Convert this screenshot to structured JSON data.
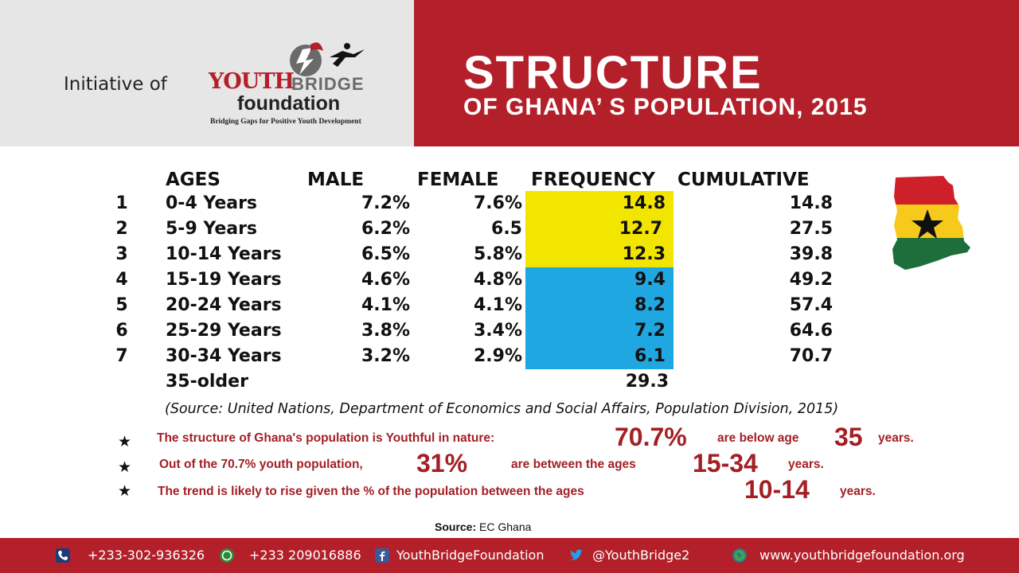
{
  "header": {
    "initiative": "Initiative of",
    "logo_youth": "YOUTH",
    "logo_bridge": "BRIDGE",
    "logo_foundation": "foundation",
    "logo_tagline": "Bridging Gaps for Positive Youth Development",
    "title": "STRUCTURE",
    "subtitle": "OF GHANA’ S POPULATION, 2015"
  },
  "table": {
    "headers": {
      "ages": "AGES",
      "male": "MALE",
      "female": "FEMALE",
      "frequency": "FREQUENCY",
      "cumulative": "CUMULATIVE"
    },
    "rows": [
      {
        "num": "1",
        "age": "0-4 Years",
        "male": "7.2%",
        "female": "7.6%",
        "frequency": "14.8",
        "cumulative": "14.8"
      },
      {
        "num": "2",
        "age": "5-9 Years",
        "male": "6.2%",
        "female": "6.5",
        "frequency": "12.7",
        "cumulative": "27.5"
      },
      {
        "num": "3",
        "age": "10-14 Years",
        "male": "6.5%",
        "female": "5.8%",
        "frequency": "12.3",
        "cumulative": "39.8"
      },
      {
        "num": "4",
        "age": "15-19 Years",
        "male": "4.6%",
        "female": "4.8%",
        "frequency": "9.4",
        "cumulative": "49.2"
      },
      {
        "num": "5",
        "age": "20-24 Years",
        "male": "4.1%",
        "female": "4.1%",
        "frequency": "8.2",
        "cumulative": "57.4"
      },
      {
        "num": "6",
        "age": "25-29 Years",
        "male": "3.8%",
        "female": "3.4%",
        "frequency": "7.2",
        "cumulative": "64.6"
      },
      {
        "num": "7",
        "age": "30-34 Years",
        "male": "3.2%",
        "female": "2.9%",
        "frequency": "6.1",
        "cumulative": "70.7"
      }
    ],
    "last_row": {
      "age": "35-older",
      "frequency": "29.3"
    },
    "highlight_colors": {
      "yellow": "#f2e600",
      "blue": "#1ea7e0"
    }
  },
  "source_note": "(Source: United Nations, Department of Economics and Social Affairs, Population Division, 2015)",
  "bullets": {
    "b1_a": "The structure of Ghana's population is Youthful in nature:",
    "b1_big1": "70.7%",
    "b1_b": "are below age",
    "b1_big2": "35",
    "b1_c": "years.",
    "b2_a": "Out of the 70.7% youth population,",
    "b2_big1": "31%",
    "b2_b": "are between the ages",
    "b2_big2": "15-34",
    "b2_c": "years.",
    "b3_a": "The trend is likely to rise given the % of the population between the ages",
    "b3_big1": "10-14",
    "b3_c": "years."
  },
  "source_bottom": {
    "label": "Source:",
    "value": "EC Ghana"
  },
  "footer": {
    "phone": "+233-302-936326",
    "whatsapp": "+233 209016886",
    "facebook": "YouthBridgeFoundation",
    "twitter": "@YouthBridge2",
    "website": "www.youthbridgefoundation.org"
  },
  "icons": [
    "phone-icon",
    "whatsapp-icon",
    "facebook-icon",
    "twitter-icon",
    "globe-icon",
    "ghana-map-icon",
    "star-icon"
  ],
  "colors": {
    "brand_red": "#b3202a",
    "text_red": "#a31f24",
    "header_gray": "#e6e6e6"
  }
}
